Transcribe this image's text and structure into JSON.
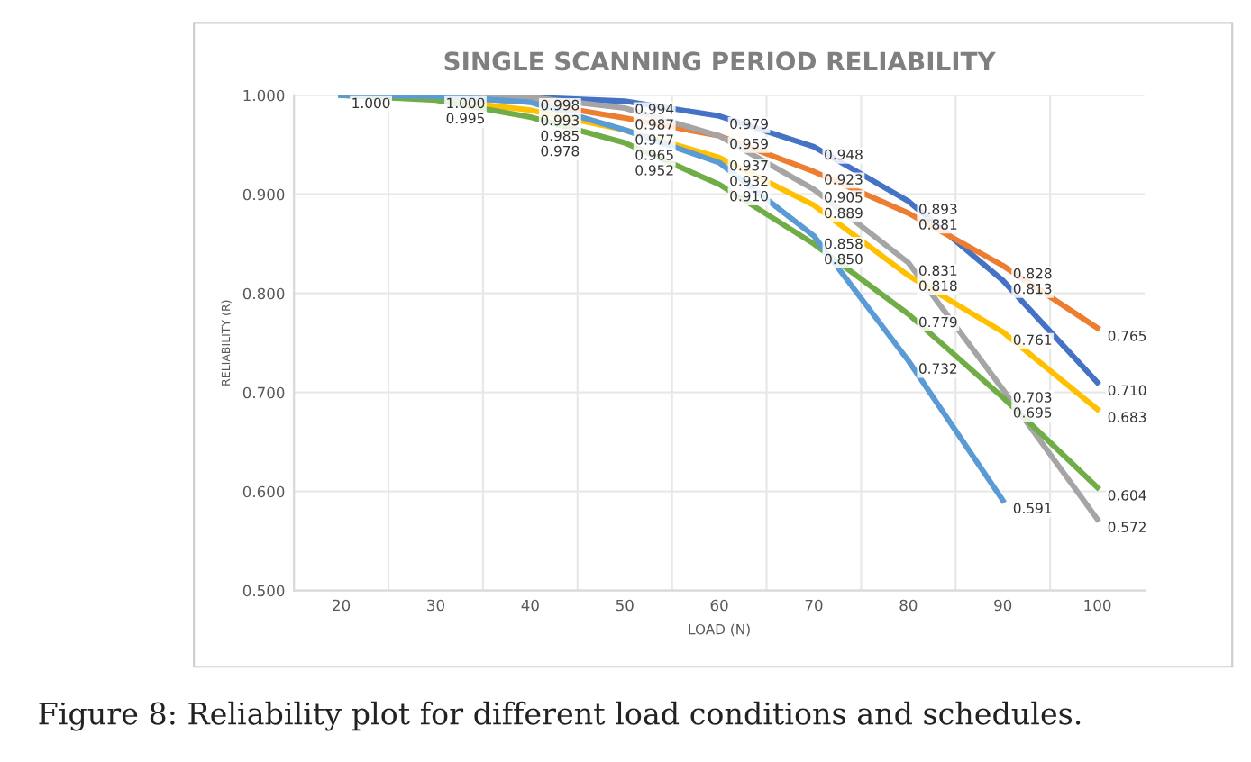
{
  "chart_data": {
    "type": "line",
    "title": "SINGLE SCANNING PERIOD RELIABILITY",
    "xlabel": "LOAD (N)",
    "ylabel": "RELIABILITY (R)",
    "categories": [
      "20",
      "30",
      "40",
      "50",
      "60",
      "70",
      "80",
      "90",
      "100"
    ],
    "series": [
      {
        "color": "#4472c4",
        "values": [
          1.0,
          1.0,
          0.998,
          0.994,
          0.979,
          0.948,
          0.893,
          0.813,
          0.71
        ],
        "value_labels": [
          "1.000",
          "1.000",
          "0.998",
          "0.994",
          "0.979",
          "0.948",
          "0.893",
          "0.813",
          "0.710"
        ]
      },
      {
        "color": "#ed7d31",
        "values": [
          1.0,
          0.999,
          0.993,
          0.977,
          0.959,
          0.923,
          0.881,
          0.828,
          0.765
        ],
        "value_labels": [
          null,
          null,
          "0.993",
          "0.977",
          "0.959",
          "0.923",
          "0.881",
          "0.828",
          "0.765"
        ]
      },
      {
        "color": "#a5a5a5",
        "values": [
          1.0,
          1.0,
          0.998,
          0.987,
          0.959,
          0.905,
          0.831,
          0.703,
          0.572
        ],
        "value_labels": [
          null,
          null,
          null,
          "0.987",
          null,
          "0.905",
          "0.831",
          "0.703",
          "0.572"
        ]
      },
      {
        "color": "#ffc000",
        "values": [
          1.0,
          0.996,
          0.985,
          0.965,
          0.937,
          0.889,
          0.818,
          0.761,
          0.683
        ],
        "value_labels": [
          null,
          null,
          "0.985",
          "0.965",
          "0.937",
          "0.889",
          "0.818",
          "0.761",
          "0.683"
        ]
      },
      {
        "color": "#70ad47",
        "values": [
          1.0,
          0.995,
          0.978,
          0.952,
          0.91,
          0.85,
          0.779,
          0.695,
          0.604
        ],
        "value_labels": [
          null,
          "0.995",
          "0.978",
          "0.952",
          "0.910",
          "0.850",
          "0.779",
          "0.695",
          "0.604"
        ]
      },
      {
        "color": "#5b9bd5",
        "values": [
          1.0,
          0.999,
          0.993,
          0.965,
          0.932,
          0.858,
          0.732,
          0.591,
          null
        ],
        "value_labels": [
          null,
          null,
          null,
          null,
          "0.932",
          "0.858",
          "0.732",
          "0.591",
          null
        ]
      }
    ],
    "ylim": [
      0.5,
      1.0
    ],
    "yticks": [
      {
        "value": 0.5,
        "label": "0.500"
      },
      {
        "value": 0.6,
        "label": "0.600"
      },
      {
        "value": 0.7,
        "label": "0.700"
      },
      {
        "value": 0.8,
        "label": "0.800"
      },
      {
        "value": 0.9,
        "label": "0.900"
      },
      {
        "value": 1.0,
        "label": "1.000"
      }
    ],
    "grid": true,
    "marker": "none",
    "line_style": "solid",
    "annotations": [
      "Figure 8: Reliability plot for different load conditions and schedules."
    ]
  }
}
